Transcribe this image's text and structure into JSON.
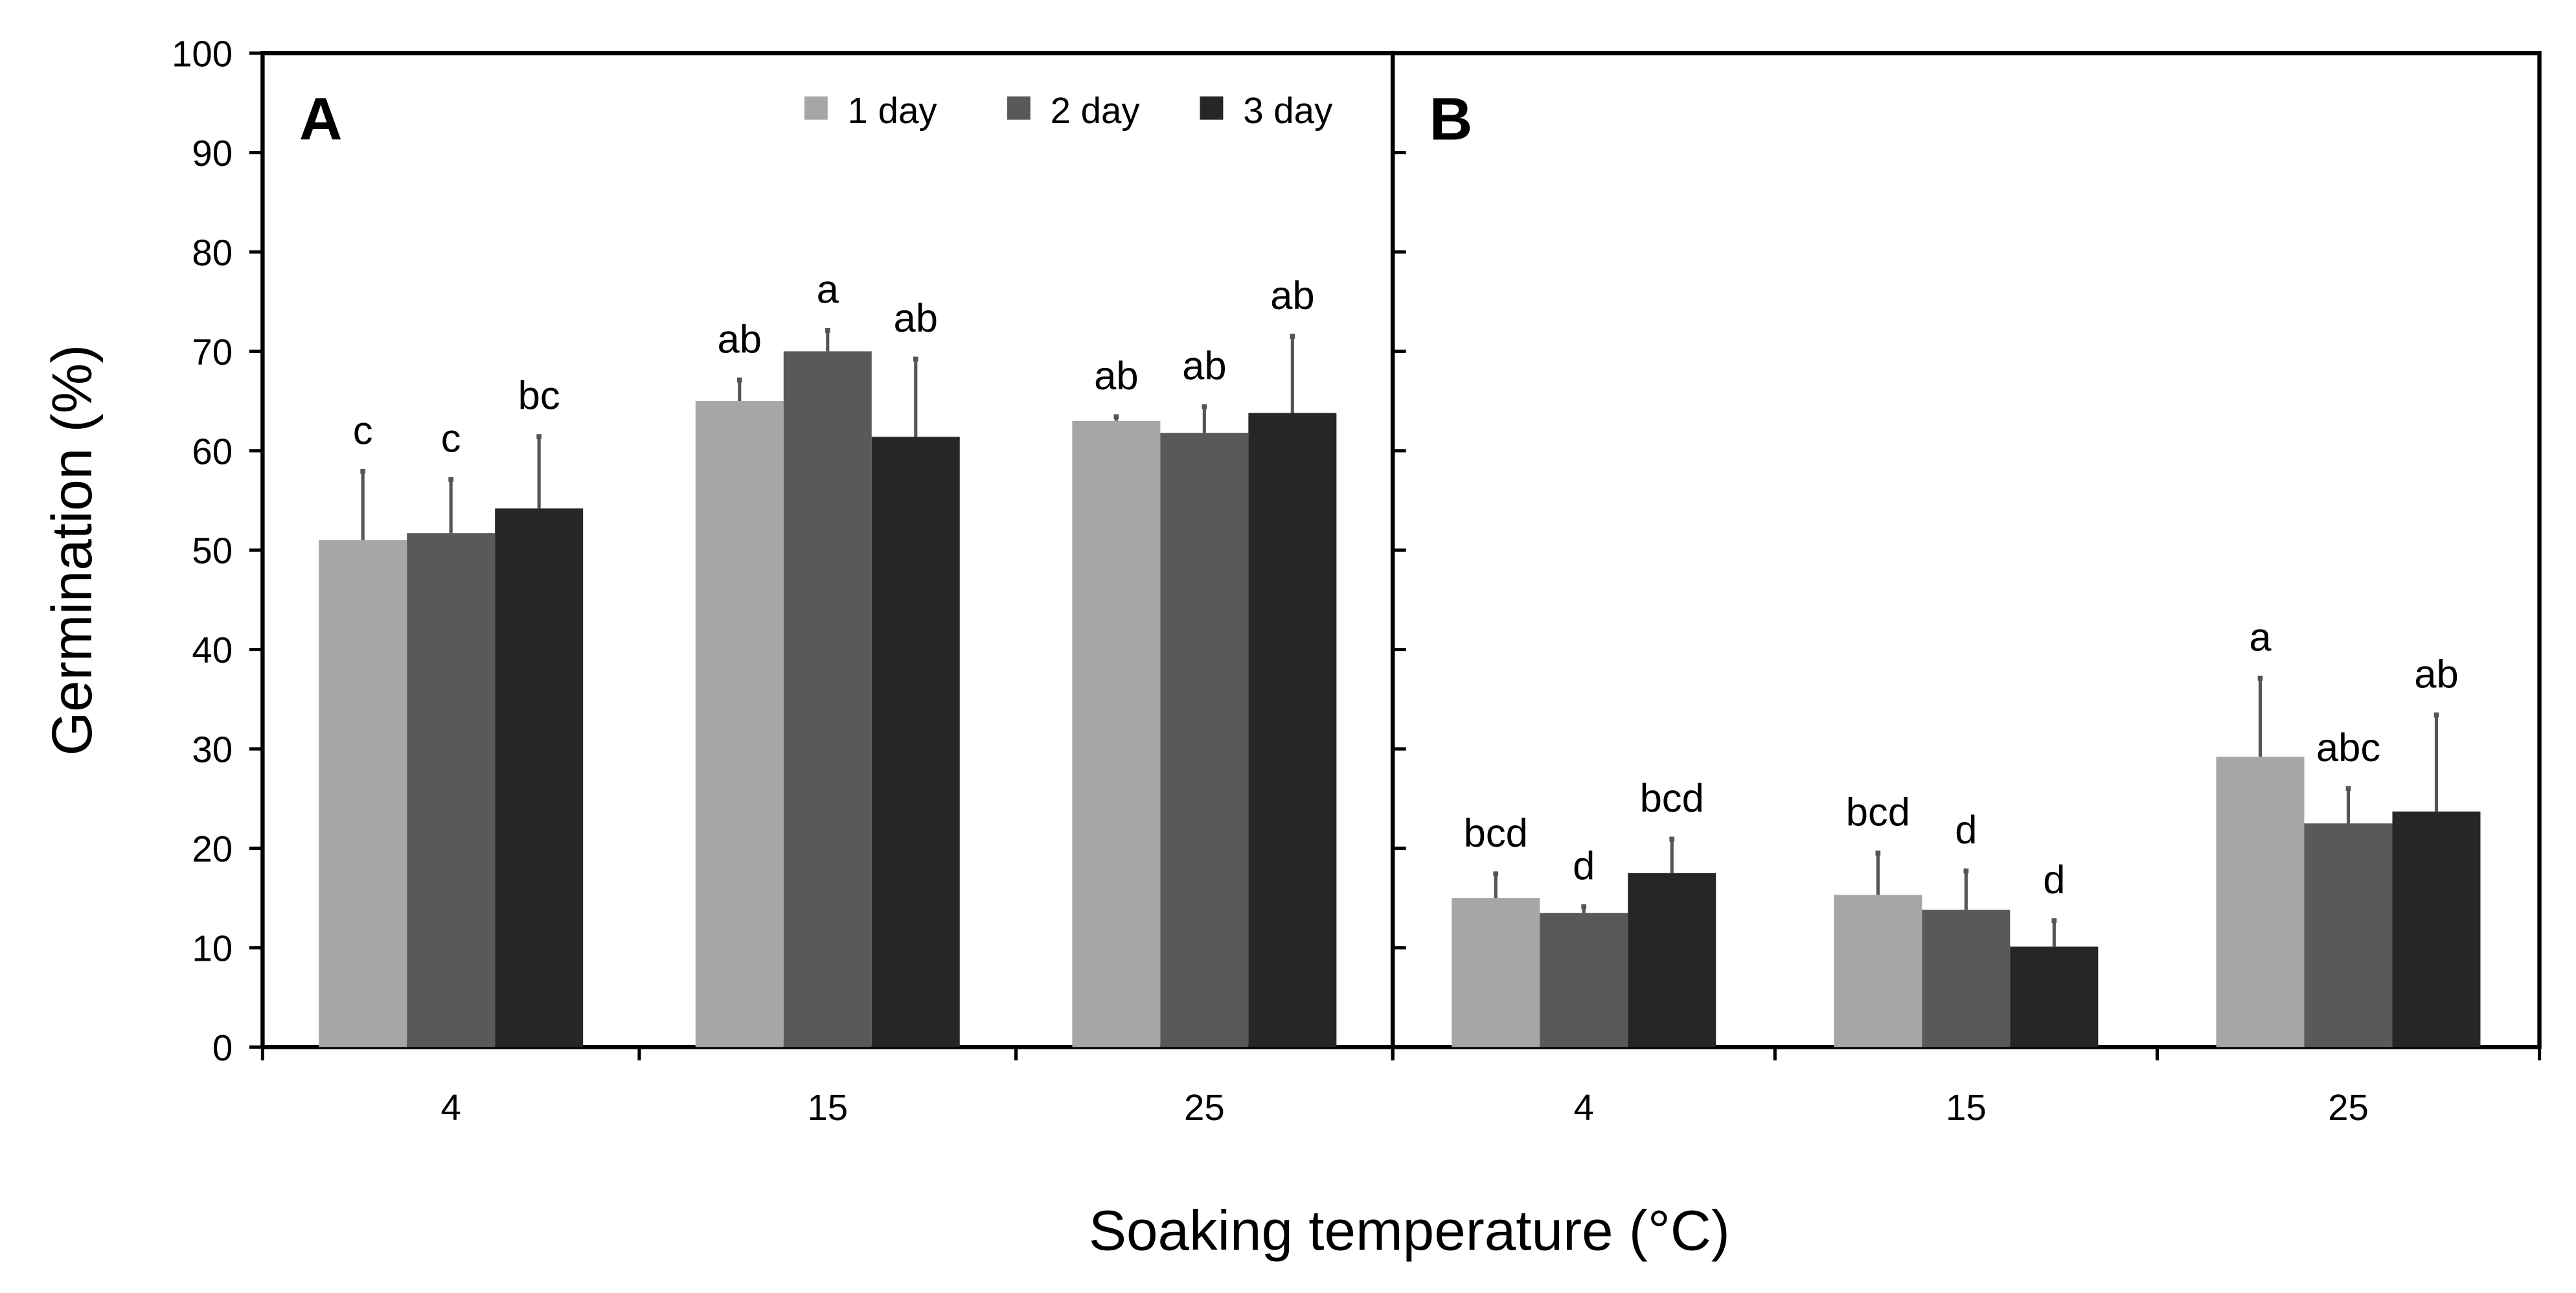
{
  "chart_data": [
    {
      "type": "bar",
      "panel_label": "A",
      "categories": [
        "4",
        "15",
        "25"
      ],
      "series": [
        {
          "name": "1 day",
          "color": "#a6a6a6",
          "values": [
            51.0,
            65.0,
            63.0
          ],
          "error": [
            7.0,
            2.2,
            0.5
          ],
          "letters": [
            "c",
            "ab",
            "ab"
          ]
        },
        {
          "name": "2 day",
          "color": "#595959",
          "values": [
            51.7,
            70.0,
            61.8
          ],
          "error": [
            5.5,
            2.2,
            2.7
          ],
          "letters": [
            "c",
            "a",
            "ab"
          ]
        },
        {
          "name": "3 day",
          "color": "#262626",
          "values": [
            54.2,
            61.4,
            63.8
          ],
          "error": [
            7.3,
            7.9,
            7.8
          ],
          "letters": [
            "bc",
            "ab",
            "ab"
          ]
        }
      ],
      "legend": "top-right"
    },
    {
      "type": "bar",
      "panel_label": "B",
      "categories": [
        "4",
        "15",
        "25"
      ],
      "series": [
        {
          "name": "1 day",
          "color": "#a6a6a6",
          "values": [
            15.0,
            15.3,
            29.2
          ],
          "error": [
            2.5,
            4.3,
            8.0
          ],
          "letters": [
            "bcd",
            "bcd",
            "a"
          ]
        },
        {
          "name": "2 day",
          "color": "#595959",
          "values": [
            13.5,
            13.8,
            22.5
          ],
          "error": [
            0.7,
            4.0,
            3.6
          ],
          "letters": [
            "d",
            "d",
            "abc"
          ]
        },
        {
          "name": "3 day",
          "color": "#262626",
          "values": [
            17.5,
            10.1,
            23.7
          ],
          "error": [
            3.5,
            2.7,
            9.8
          ],
          "letters": [
            "bcd",
            "d",
            "ab"
          ]
        }
      ]
    }
  ],
  "axes": {
    "ylabel": "Germination (%)",
    "xlabel": "Soaking temperature (°C)",
    "ylim": [
      0,
      100
    ],
    "yticks": [
      "0",
      "10",
      "20",
      "30",
      "40",
      "50",
      "60",
      "70",
      "80",
      "90",
      "100"
    ]
  }
}
